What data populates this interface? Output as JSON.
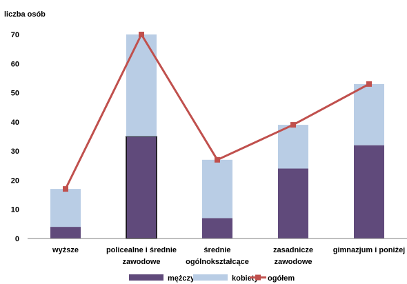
{
  "chart_data": {
    "type": "bar",
    "stacked": true,
    "ylabel": "liczba osób",
    "ylim": [
      0,
      70
    ],
    "yticks": [
      0,
      10,
      20,
      30,
      40,
      50,
      60,
      70
    ],
    "categories": [
      [
        "wyższe"
      ],
      [
        "policealne i średnie",
        "zawodowe"
      ],
      [
        "średnie",
        "ogólnokształcące"
      ],
      [
        "zasadnicze",
        "zawodowe"
      ],
      [
        "gimnazjum i poniżej"
      ]
    ],
    "series": [
      {
        "name": "mężczyźni",
        "type": "bar",
        "color": "#604a7b",
        "values": [
          4,
          35,
          7,
          24,
          32
        ]
      },
      {
        "name": "kobiety",
        "type": "bar",
        "color": "#b9cde5",
        "values": [
          13,
          35,
          20,
          15,
          21
        ]
      },
      {
        "name": "ogółem",
        "type": "line",
        "color": "#c0504d",
        "values": [
          17,
          70,
          27,
          39,
          53
        ]
      }
    ],
    "legend": "bottom",
    "grid": false
  }
}
